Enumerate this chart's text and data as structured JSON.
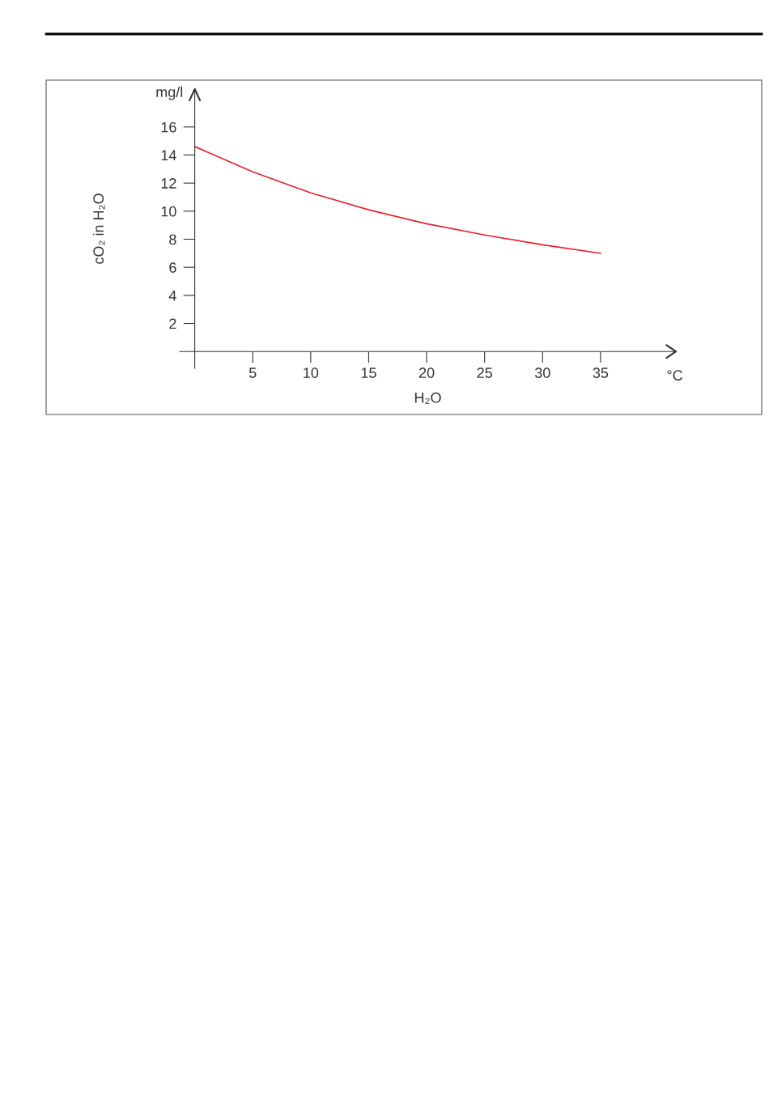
{
  "chart_data": {
    "type": "line",
    "x": [
      0,
      5,
      10,
      15,
      20,
      25,
      30,
      35
    ],
    "series": [
      {
        "color": "#e8202a",
        "values": [
          14.6,
          12.8,
          11.3,
          10.1,
          9.1,
          8.3,
          7.6,
          7.0
        ]
      }
    ],
    "xlabel": "H₂O",
    "ylabel": "cO₂ in H₂O",
    "annotations": [
      "mg/l",
      "°C"
    ],
    "xlim": [
      -1.3,
      41.5
    ],
    "ylim": [
      -1.2,
      18.7
    ],
    "xticks": [
      5,
      10,
      15,
      20,
      25,
      30,
      35
    ],
    "yticks": [
      2,
      4,
      6,
      8,
      10,
      12,
      14,
      16
    ],
    "grid": false,
    "legend": false,
    "marker": "none",
    "line_style": "solid"
  }
}
